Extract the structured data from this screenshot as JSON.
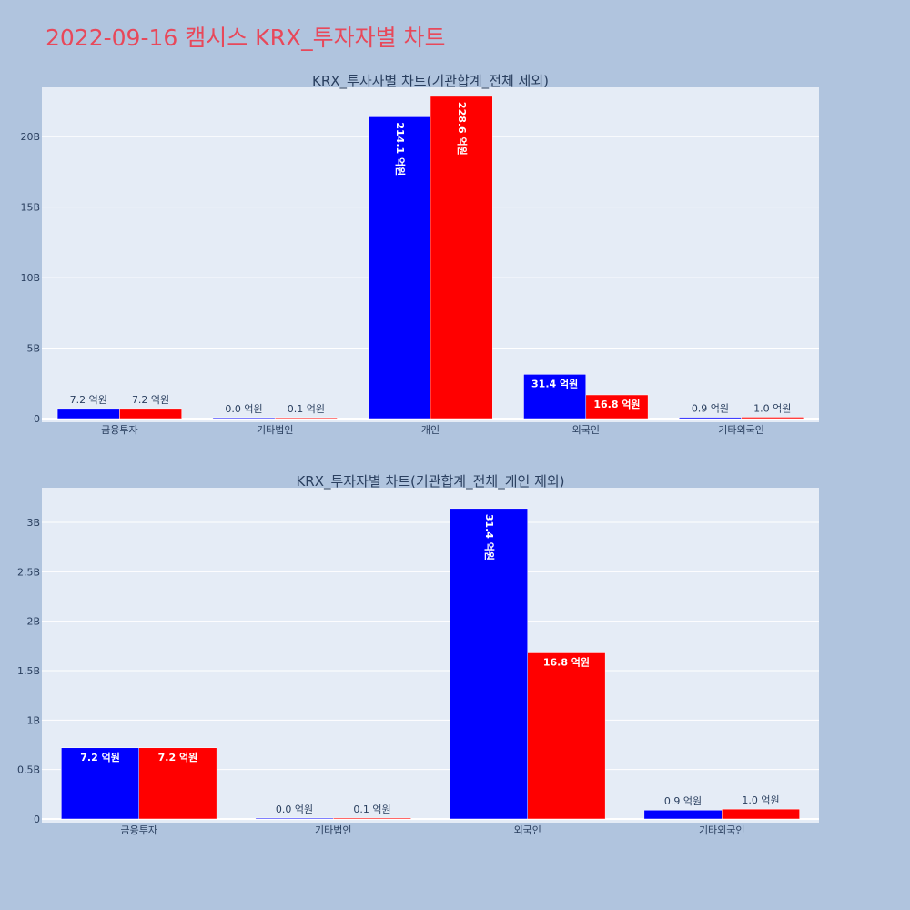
{
  "page": {
    "title": "2022-09-16 캠시스 KRX_투자자별 차트"
  },
  "chart_data": [
    {
      "type": "bar",
      "title": "KRX_투자자별 차트(기관합계_전체 제외)",
      "categories": [
        "금융투자",
        "기타법인",
        "개인",
        "외국인",
        "기타외국인"
      ],
      "series": [
        {
          "color": "#0000ff",
          "values": [
            720000000,
            0,
            21410000000,
            3140000000,
            90000000
          ],
          "labels": [
            "7.2 억원",
            "0.0 억원",
            "214.1 억원",
            "31.4 억원",
            "0.9 억원"
          ]
        },
        {
          "color": "#ff0000",
          "values": [
            720000000,
            10000000,
            22860000000,
            1680000000,
            100000000
          ],
          "labels": [
            "7.2 억원",
            "0.1 억원",
            "228.6 억원",
            "16.8 억원",
            "1.0 억원"
          ]
        }
      ],
      "yticks": [
        0,
        5000000000,
        10000000000,
        15000000000,
        20000000000
      ],
      "ytick_labels": [
        "0",
        "5B",
        "10B",
        "15B",
        "20B"
      ],
      "ylim": [
        0,
        23500000000
      ],
      "grid": true
    },
    {
      "type": "bar",
      "title": "KRX_투자자별 차트(기관합계_전체_개인 제외)",
      "categories": [
        "금융투자",
        "기타법인",
        "외국인",
        "기타외국인"
      ],
      "series": [
        {
          "color": "#0000ff",
          "values": [
            720000000,
            0,
            3140000000,
            90000000
          ],
          "labels": [
            "7.2 억원",
            "0.0 억원",
            "31.4 억원",
            "0.9 억원"
          ]
        },
        {
          "color": "#ff0000",
          "values": [
            720000000,
            10000000,
            1680000000,
            100000000
          ],
          "labels": [
            "7.2 억원",
            "0.1 억원",
            "16.8 억원",
            "1.0 억원"
          ]
        }
      ],
      "yticks": [
        0,
        500000000,
        1000000000,
        1500000000,
        2000000000,
        2500000000,
        3000000000
      ],
      "ytick_labels": [
        "0",
        "0.5B",
        "1B",
        "1.5B",
        "2B",
        "2.5B",
        "3B"
      ],
      "ylim": [
        0,
        3350000000
      ],
      "grid": true
    }
  ]
}
